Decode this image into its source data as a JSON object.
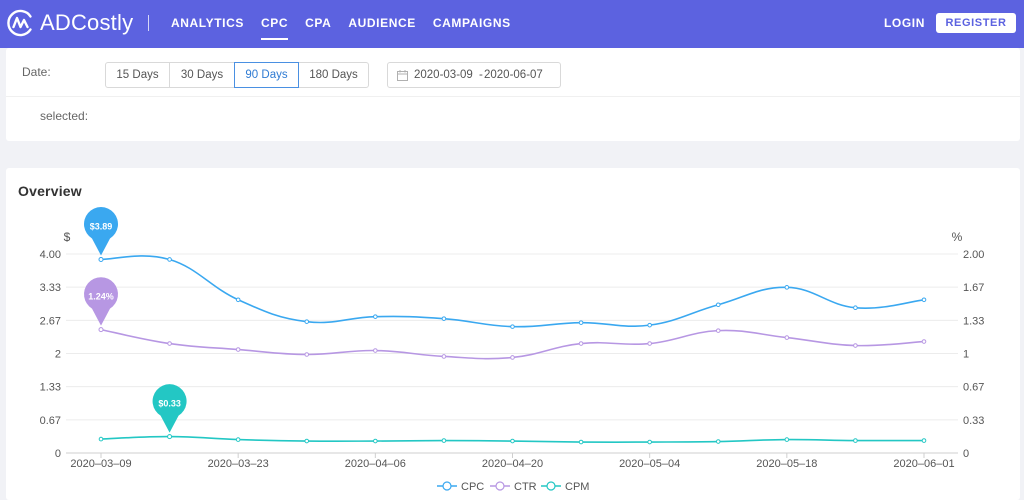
{
  "brand": {
    "name": "ADCostly"
  },
  "nav": {
    "items": [
      {
        "label": "ANALYTICS",
        "active": false
      },
      {
        "label": "CPC",
        "active": true
      },
      {
        "label": "CPA",
        "active": false
      },
      {
        "label": "AUDIENCE",
        "active": false
      },
      {
        "label": "CAMPAIGNS",
        "active": false
      }
    ],
    "login_label": "LOGIN",
    "register_label": "REGISTER"
  },
  "filters": {
    "date_label": "Date:",
    "ranges": [
      {
        "label": "15 Days",
        "active": false
      },
      {
        "label": "30 Days",
        "active": false
      },
      {
        "label": "90 Days",
        "active": true
      },
      {
        "label": "180 Days",
        "active": false
      }
    ],
    "date_from": "2020-03-09",
    "date_separator": "-",
    "date_to": "2020-06-07",
    "selected_label": "selected:"
  },
  "overview": {
    "title": "Overview"
  },
  "colors": {
    "accent": "#5c62e0",
    "cpc": "#3aa8f0",
    "ctr": "#b797e3",
    "cpm": "#23c7c4"
  },
  "chart_data": {
    "type": "line",
    "x": [
      "2020-03-09",
      "2020-03-16",
      "2020-03-23",
      "2020-03-30",
      "2020-04-06",
      "2020-04-13",
      "2020-04-20",
      "2020-04-27",
      "2020-05-04",
      "2020-05-11",
      "2020-05-18",
      "2020-05-25",
      "2020-06-01"
    ],
    "x_ticks": [
      "2020–03–09",
      "2020–03–23",
      "2020–04–06",
      "2020–04–20",
      "2020–05–04",
      "2020–05–18",
      "2020–06–01"
    ],
    "y_left": {
      "unit": "$",
      "range": [
        0,
        4
      ],
      "ticks": [
        "0",
        "0.67",
        "1.33",
        "2",
        "2.67",
        "3.33",
        "4.00"
      ]
    },
    "y_right": {
      "unit": "%",
      "range": [
        0,
        2
      ],
      "ticks": [
        "0",
        "0.33",
        "0.67",
        "1",
        "1.33",
        "1.67",
        "2.00"
      ]
    },
    "series": [
      {
        "name": "CPC",
        "axis": "left",
        "values": [
          3.89,
          3.89,
          3.08,
          2.64,
          2.74,
          2.7,
          2.54,
          2.62,
          2.57,
          2.98,
          3.33,
          2.92,
          3.08
        ]
      },
      {
        "name": "CTR",
        "axis": "right",
        "values": [
          1.24,
          1.1,
          1.04,
          0.99,
          1.03,
          0.97,
          0.96,
          1.1,
          1.1,
          1.23,
          1.16,
          1.08,
          1.12
        ]
      },
      {
        "name": "CPM",
        "axis": "left",
        "values": [
          0.28,
          0.33,
          0.27,
          0.24,
          0.24,
          0.25,
          0.24,
          0.22,
          0.22,
          0.23,
          0.27,
          0.25,
          0.25
        ]
      }
    ],
    "markers": [
      {
        "series": "CPC",
        "index": 0,
        "label": "$3.89"
      },
      {
        "series": "CTR",
        "index": 0,
        "label": "1.24%"
      },
      {
        "series": "CPM",
        "index": 1,
        "label": "$0.33"
      }
    ],
    "legend_position": "bottom-center",
    "grid": true
  }
}
